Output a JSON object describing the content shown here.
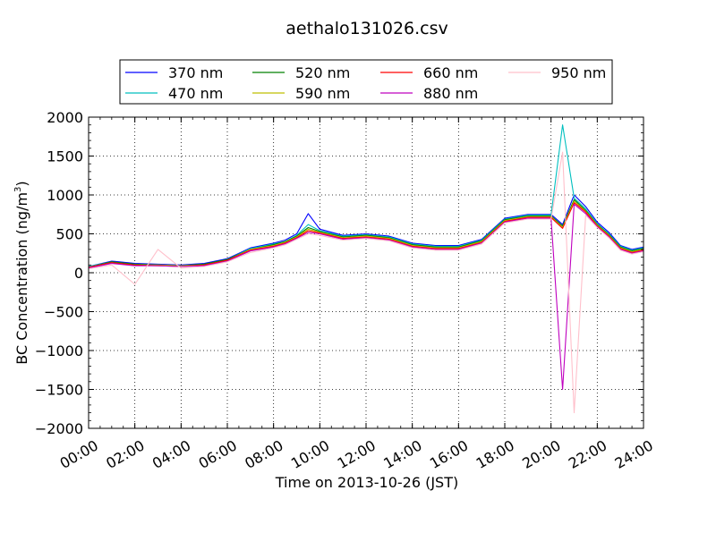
{
  "chart_data": {
    "type": "line",
    "title": "aethalo131026.csv",
    "xlabel": "Time on 2013-10-26 (JST)",
    "ylabel_main": "BC Concentration (ng/m",
    "ylabel_sup": "3",
    "ylabel_end": ")",
    "xlim": [
      "00:00",
      "24:00"
    ],
    "ylim": [
      -2000,
      2000
    ],
    "grid": true,
    "grid_style": "dotted",
    "legend_position": "top-center",
    "x_ticks": [
      "00:00",
      "02:00",
      "04:00",
      "06:00",
      "08:00",
      "10:00",
      "12:00",
      "14:00",
      "16:00",
      "18:00",
      "20:00",
      "22:00",
      "24:00"
    ],
    "y_ticks": [
      "2000",
      "1500",
      "1000",
      "500",
      "0",
      "−500",
      "−1000",
      "−1500",
      "−2000"
    ],
    "y_tick_values": [
      2000,
      1500,
      1000,
      500,
      0,
      -500,
      -1000,
      -1500,
      -2000
    ],
    "x": [
      "00:00",
      "01:00",
      "02:00",
      "03:00",
      "04:00",
      "05:00",
      "06:00",
      "07:00",
      "08:00",
      "08:30",
      "09:00",
      "09:30",
      "10:00",
      "11:00",
      "12:00",
      "13:00",
      "14:00",
      "15:00",
      "16:00",
      "17:00",
      "18:00",
      "19:00",
      "20:00",
      "20:30",
      "21:00",
      "21:30",
      "22:00",
      "22:30",
      "23:00",
      "23:30",
      "24:00"
    ],
    "series": [
      {
        "name": "370 nm",
        "color": "#0000ff",
        "values": [
          80,
          150,
          120,
          110,
          100,
          120,
          180,
          320,
          380,
          420,
          500,
          760,
          560,
          480,
          500,
          470,
          380,
          350,
          350,
          430,
          700,
          750,
          750,
          620,
          1000,
          850,
          650,
          520,
          350,
          300,
          330
        ]
      },
      {
        "name": "470 nm",
        "color": "#00bfbf",
        "values": [
          80,
          140,
          110,
          100,
          90,
          110,
          170,
          310,
          370,
          400,
          480,
          620,
          540,
          470,
          490,
          460,
          370,
          340,
          340,
          420,
          690,
          740,
          740,
          1900,
          960,
          820,
          630,
          500,
          340,
          290,
          320
        ]
      },
      {
        "name": "520 nm",
        "color": "#008000",
        "values": [
          70,
          140,
          110,
          100,
          90,
          110,
          170,
          300,
          360,
          400,
          470,
          580,
          530,
          460,
          480,
          450,
          360,
          330,
          330,
          410,
          680,
          730,
          730,
          600,
          940,
          800,
          620,
          490,
          330,
          280,
          310
        ]
      },
      {
        "name": "590 nm",
        "color": "#bfbf00",
        "values": [
          70,
          130,
          100,
          100,
          90,
          100,
          160,
          300,
          350,
          390,
          460,
          560,
          520,
          450,
          470,
          440,
          350,
          320,
          320,
          400,
          670,
          720,
          720,
          580,
          920,
          790,
          610,
          480,
          320,
          270,
          300
        ]
      },
      {
        "name": "660 nm",
        "color": "#ff0000",
        "values": [
          70,
          130,
          100,
          90,
          80,
          100,
          160,
          290,
          340,
          380,
          450,
          540,
          510,
          440,
          460,
          430,
          340,
          310,
          310,
          390,
          660,
          710,
          710,
          570,
          900,
          780,
          600,
          470,
          310,
          260,
          290
        ]
      },
      {
        "name": "880 nm",
        "color": "#bf00bf",
        "values": [
          60,
          120,
          90,
          90,
          80,
          90,
          150,
          280,
          330,
          370,
          440,
          520,
          500,
          430,
          450,
          420,
          330,
          300,
          300,
          380,
          650,
          700,
          700,
          -1500,
          880,
          760,
          590,
          460,
          300,
          250,
          280
        ]
      },
      {
        "name": "950 nm",
        "color": "#ffc0cb",
        "values": [
          50,
          100,
          -150,
          300,
          60,
          80,
          140,
          260,
          320,
          360,
          430,
          500,
          480,
          420,
          440,
          410,
          320,
          290,
          290,
          370,
          640,
          690,
          690,
          1550,
          -1800,
          740,
          580,
          450,
          290,
          240,
          270
        ]
      }
    ]
  }
}
